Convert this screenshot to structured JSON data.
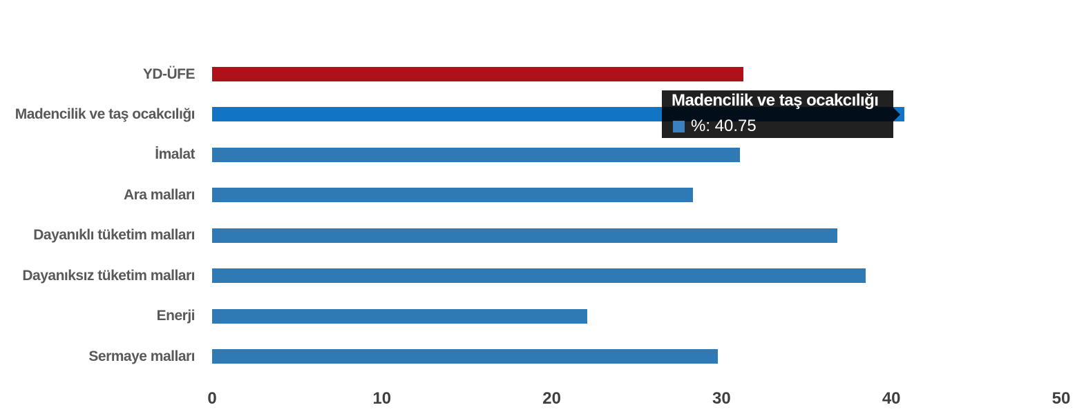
{
  "chart_data": {
    "type": "bar",
    "orientation": "horizontal",
    "title": "",
    "xlabel": "",
    "ylabel": "",
    "categories": [
      "YD-ÜFE",
      "Madencilik ve taş ocakcılığı",
      "İmalat",
      "Ara malları",
      "Dayanıklı tüketim malları",
      "Dayanıksız tüketim malları",
      "Enerji",
      "Sermaye malları"
    ],
    "values": [
      31.3,
      40.75,
      31.1,
      28.3,
      36.8,
      38.5,
      22.1,
      29.8
    ],
    "series_name": "%",
    "xlim": [
      0,
      50
    ],
    "x_ticks": [
      0,
      10,
      20,
      30,
      40,
      50
    ],
    "grid": false,
    "legend_position": "none",
    "bar_colors": {
      "first_bar": "#ae1218",
      "default": "#2f79b5",
      "hovered": "#1274c5"
    },
    "hovered_index": 1
  },
  "tooltip": {
    "title": "Madencilik ve taş ocakcılığı",
    "series_label": "%",
    "value": "40.75",
    "text": "%: 40.75",
    "marker_color": "#3a82bf",
    "background": "rgba(0,0,0,0.87)"
  },
  "colors": {
    "category_label": "#595959",
    "tick_label": "#3f3f3f",
    "background": "#ffffff"
  }
}
